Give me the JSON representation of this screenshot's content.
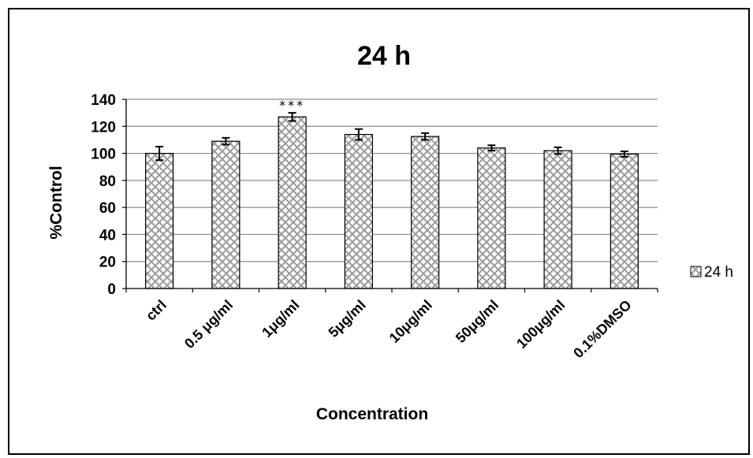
{
  "chart_data": {
    "type": "bar",
    "title": "24 h",
    "xlabel": "Concentration",
    "ylabel": "%Control",
    "categories": [
      "ctrl",
      "0.5 μg/ml",
      "1μg/ml",
      "5μg/ml",
      "10μg/ml",
      "50μg/ml",
      "100μg/ml",
      "0.1%DMSO"
    ],
    "series": [
      {
        "name": "24 h",
        "values": [
          100,
          109,
          127,
          114,
          112.5,
          104,
          102,
          99.5
        ],
        "errors": [
          5,
          2.5,
          3,
          4,
          2.5,
          2,
          2.5,
          2
        ]
      }
    ],
    "ylim": [
      0,
      140
    ],
    "yticks": [
      0,
      20,
      40,
      60,
      80,
      100,
      120,
      140
    ],
    "grid": true,
    "legend": "right",
    "annotations": [
      {
        "category": "1μg/ml",
        "text": "***"
      }
    ],
    "colors": {
      "bar_fill": "#ffffff",
      "hatch": "#9a9a9a",
      "bar_edge": "#000000",
      "grid": "#8c8c8c",
      "axis": "#000000"
    }
  }
}
